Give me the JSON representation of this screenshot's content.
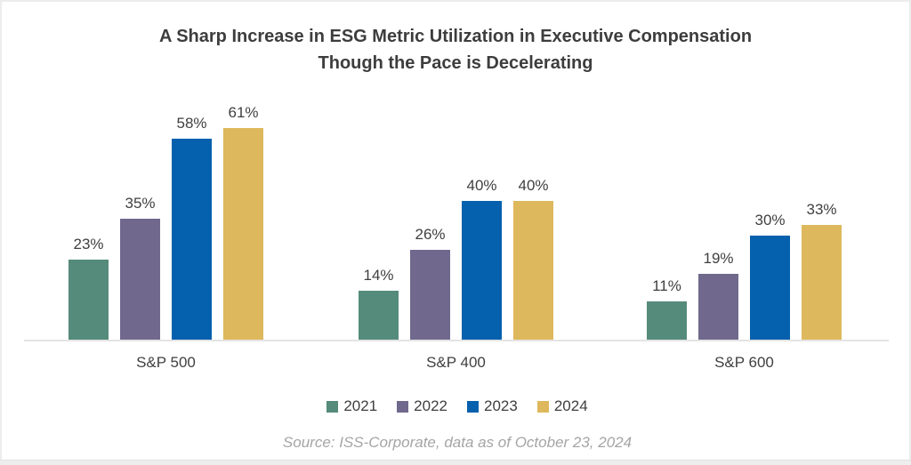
{
  "title": {
    "line1": "A Sharp Increase in ESG Metric Utilization in Executive Compensation",
    "line2": "Though the Pace is Decelerating"
  },
  "source": "Source: ISS-Corporate, data as of October 23, 2024",
  "chart_data": {
    "type": "bar",
    "title": "A Sharp Increase in ESG Metric Utilization in Executive Compensation Though the Pace is Decelerating",
    "categories": [
      "S&P 500",
      "S&P 400",
      "S&P 600"
    ],
    "series": [
      {
        "name": "2021",
        "color": "#558b7b",
        "values": [
          23,
          14,
          11
        ]
      },
      {
        "name": "2022",
        "color": "#70698d",
        "values": [
          35,
          26,
          19
        ]
      },
      {
        "name": "2023",
        "color": "#0560ad",
        "values": [
          58,
          40,
          30
        ]
      },
      {
        "name": "2024",
        "color": "#deb85d",
        "values": [
          61,
          40,
          33
        ]
      }
    ],
    "value_suffix": "%",
    "data_labels": true,
    "ylim": [
      0,
      65
    ],
    "grid": false,
    "legend_position": "bottom",
    "axis_line_color": "#e4e4e4",
    "label_color": "#3f3f3f"
  }
}
